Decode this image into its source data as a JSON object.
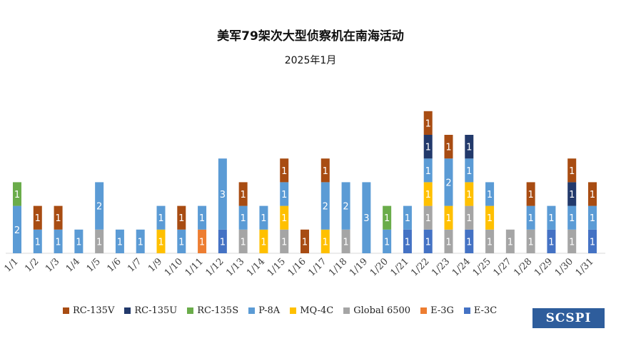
{
  "title": "美军79架次大型侦察机在南海活动",
  "subtitle": "2025年1月",
  "logo_text": "SCSPI",
  "series_meta": [
    {
      "name": "RC-135V",
      "color": "#a84c12"
    },
    {
      "name": "RC-135U",
      "color": "#22396b"
    },
    {
      "name": "RC-135S",
      "color": "#6aac4a"
    },
    {
      "name": "P-8A",
      "color": "#5b9bd5"
    },
    {
      "name": "MQ-4C",
      "color": "#ffc000"
    },
    {
      "name": "Global 6500",
      "color": "#a5a5a5"
    },
    {
      "name": "E-3G",
      "color": "#ed7d31"
    },
    {
      "name": "E-3C",
      "color": "#4472c4"
    }
  ],
  "chart_data": {
    "type": "bar",
    "stacked": true,
    "title": "美军79架次大型侦察机在南海活动",
    "subtitle": "2025年1月",
    "categories": [
      "1/1",
      "1/2",
      "1/3",
      "1/4",
      "1/5",
      "1/6",
      "1/7",
      "1/9",
      "1/10",
      "1/11",
      "1/12",
      "1/13",
      "1/14",
      "1/15",
      "1/16",
      "1/17",
      "1/18",
      "1/19",
      "1/20",
      "1/21",
      "1/22",
      "1/23",
      "1/24",
      "1/25",
      "1/27",
      "1/28",
      "1/29",
      "1/30",
      "1/31"
    ],
    "stack_order_bottom_to_top": [
      "E-3C",
      "E-3G",
      "Global 6500",
      "MQ-4C",
      "P-8A",
      "RC-135S",
      "RC-135U",
      "RC-135V"
    ],
    "series": [
      {
        "name": "RC-135V",
        "values": [
          0,
          1,
          1,
          0,
          0,
          0,
          0,
          0,
          1,
          0,
          0,
          1,
          0,
          1,
          1,
          1,
          0,
          0,
          0,
          0,
          1,
          1,
          0,
          0,
          0,
          1,
          0,
          1,
          1
        ]
      },
      {
        "name": "RC-135U",
        "values": [
          0,
          0,
          0,
          0,
          0,
          0,
          0,
          0,
          0,
          0,
          0,
          0,
          0,
          0,
          0,
          0,
          0,
          0,
          0,
          0,
          1,
          0,
          1,
          0,
          0,
          0,
          0,
          1,
          0
        ]
      },
      {
        "name": "RC-135S",
        "values": [
          1,
          0,
          0,
          0,
          0,
          0,
          0,
          0,
          0,
          0,
          0,
          0,
          0,
          0,
          0,
          0,
          0,
          0,
          1,
          0,
          0,
          0,
          0,
          0,
          0,
          0,
          0,
          0,
          0
        ]
      },
      {
        "name": "P-8A",
        "values": [
          2,
          1,
          1,
          1,
          2,
          1,
          1,
          1,
          1,
          1,
          3,
          1,
          1,
          1,
          0,
          2,
          2,
          3,
          1,
          1,
          1,
          2,
          1,
          1,
          0,
          1,
          1,
          1,
          1
        ]
      },
      {
        "name": "MQ-4C",
        "values": [
          0,
          0,
          0,
          0,
          0,
          0,
          0,
          1,
          0,
          0,
          0,
          0,
          1,
          1,
          0,
          1,
          0,
          0,
          0,
          0,
          1,
          1,
          1,
          1,
          0,
          0,
          0,
          0,
          0
        ]
      },
      {
        "name": "Global 6500",
        "values": [
          0,
          0,
          0,
          0,
          1,
          0,
          0,
          0,
          0,
          0,
          0,
          1,
          0,
          1,
          0,
          0,
          1,
          0,
          0,
          0,
          1,
          1,
          1,
          1,
          1,
          1,
          0,
          1,
          0
        ]
      },
      {
        "name": "E-3G",
        "values": [
          0,
          0,
          0,
          0,
          0,
          0,
          0,
          0,
          0,
          1,
          0,
          0,
          0,
          0,
          0,
          0,
          0,
          0,
          0,
          0,
          0,
          0,
          0,
          0,
          0,
          0,
          0,
          0,
          0
        ]
      },
      {
        "name": "E-3C",
        "values": [
          0,
          0,
          0,
          0,
          0,
          0,
          0,
          0,
          0,
          0,
          1,
          0,
          0,
          0,
          0,
          0,
          0,
          0,
          0,
          1,
          1,
          0,
          1,
          0,
          0,
          0,
          1,
          0,
          1
        ]
      }
    ],
    "ylim": [
      0,
      6
    ],
    "grid": false,
    "data_labels": true,
    "legend_position": "bottom"
  }
}
